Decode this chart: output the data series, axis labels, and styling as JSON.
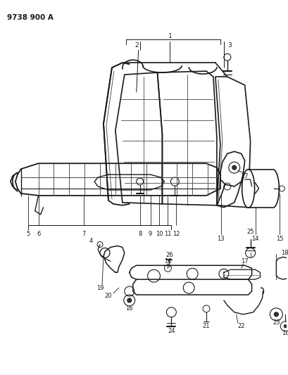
{
  "title": "9738 900 A",
  "bg_color": "#ffffff",
  "line_color": "#1a1a1a",
  "fig_width": 4.1,
  "fig_height": 5.33,
  "dpi": 100
}
